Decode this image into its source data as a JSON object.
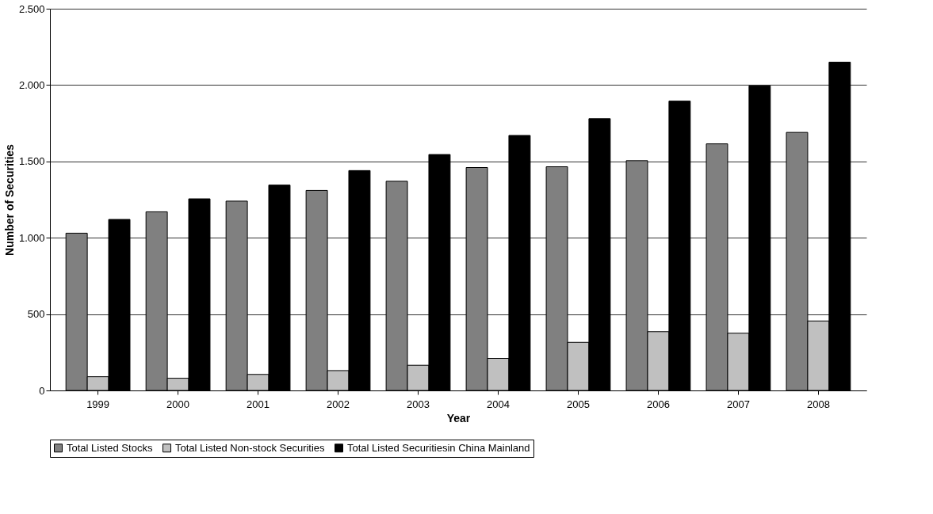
{
  "chart_data": {
    "type": "bar",
    "xlabel": "Year",
    "ylabel": "Number of Securities",
    "categories": [
      "1999",
      "2000",
      "2001",
      "2002",
      "2003",
      "2004",
      "2005",
      "2006",
      "2007",
      "2008"
    ],
    "series": [
      {
        "name": "Total Listed Stocks",
        "color": "#808080",
        "values": [
          1030,
          1170,
          1240,
          1310,
          1370,
          1460,
          1465,
          1505,
          1615,
          1690
        ]
      },
      {
        "name": "Total Listed Non-stock Securities",
        "color": "#c0c0c0",
        "values": [
          90,
          80,
          105,
          130,
          165,
          210,
          315,
          385,
          375,
          455
        ]
      },
      {
        "name": "Total Listed Securitiesin China Mainland",
        "color": "#000000",
        "values": [
          1120,
          1255,
          1345,
          1440,
          1545,
          1670,
          1780,
          1895,
          1995,
          2150
        ]
      }
    ],
    "ylim": [
      0,
      2500
    ],
    "yticks": [
      0,
      500,
      {
        "value": 1000,
        "label": "1.000"
      },
      {
        "value": 1500,
        "label": "1.500"
      },
      {
        "value": 2000,
        "label": "2.000"
      },
      {
        "value": 2500,
        "label": "2.500"
      }
    ],
    "grid": "y",
    "legend": "bottom"
  }
}
